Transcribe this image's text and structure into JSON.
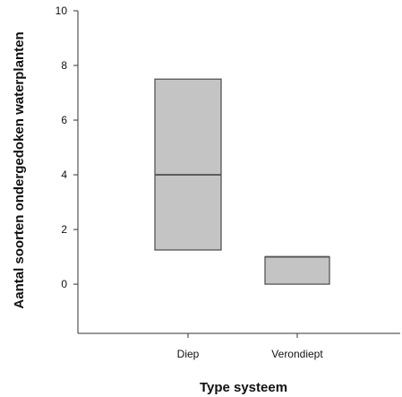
{
  "chart_data": {
    "type": "box",
    "xlabel": "Type systeem",
    "ylabel": "Aantal soorten ondergedoken waterplanten",
    "ylim": [
      -1.8,
      10
    ],
    "yticks": [
      0,
      2,
      4,
      6,
      8,
      10
    ],
    "categories": [
      "Diep",
      "Verondiept"
    ],
    "boxes": [
      {
        "category": "Diep",
        "q1": 1.25,
        "median": 4,
        "q3": 7.5
      },
      {
        "category": "Verondiept",
        "q1": 0,
        "median": 1,
        "q3": 1
      }
    ],
    "grid": false,
    "colors": {
      "box_fill": "#c4c4c4",
      "box_stroke": "#555555",
      "axis": "#333333"
    }
  }
}
